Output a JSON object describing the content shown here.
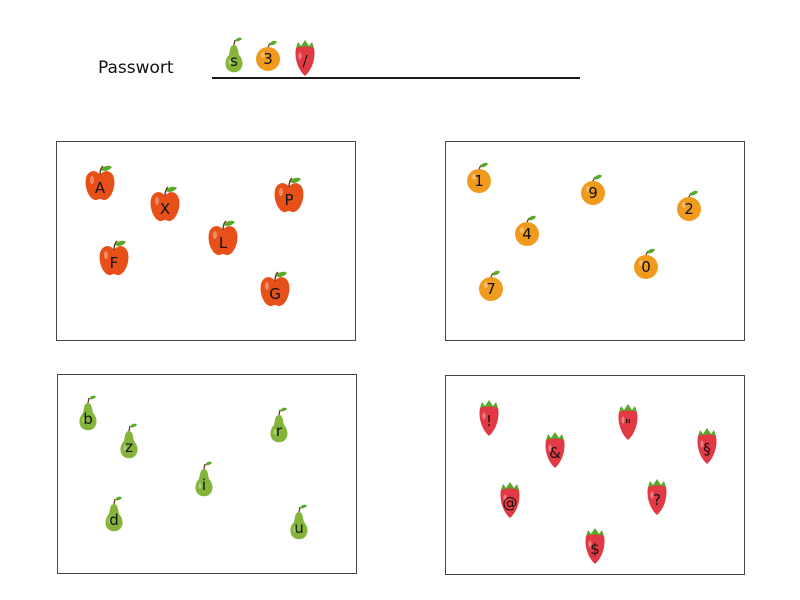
{
  "password": {
    "label": "Passwort",
    "entered": [
      {
        "type": "pear",
        "char": "s"
      },
      {
        "type": "orange",
        "char": "3"
      },
      {
        "type": "straw",
        "char": "/"
      }
    ]
  },
  "groups": [
    {
      "name": "apples",
      "fruit": "apple",
      "items": [
        {
          "char": "A"
        },
        {
          "char": "X"
        },
        {
          "char": "P"
        },
        {
          "char": "L"
        },
        {
          "char": "F"
        },
        {
          "char": "G"
        }
      ]
    },
    {
      "name": "oranges",
      "fruit": "orange",
      "items": [
        {
          "char": "1"
        },
        {
          "char": "9"
        },
        {
          "char": "2"
        },
        {
          "char": "4"
        },
        {
          "char": "0"
        },
        {
          "char": "7"
        }
      ]
    },
    {
      "name": "pears",
      "fruit": "pear",
      "items": [
        {
          "char": "b"
        },
        {
          "char": "z"
        },
        {
          "char": "r"
        },
        {
          "char": "i"
        },
        {
          "char": "d"
        },
        {
          "char": "u"
        }
      ]
    },
    {
      "name": "strawberries",
      "fruit": "straw",
      "items": [
        {
          "char": "!"
        },
        {
          "char": "\""
        },
        {
          "char": "&"
        },
        {
          "char": "§"
        },
        {
          "char": "@"
        },
        {
          "char": "?"
        },
        {
          "char": "$"
        }
      ]
    }
  ],
  "colors": {
    "apple": "#e8501a",
    "orange": "#f09a1e",
    "pear": "#84b53a",
    "strawberry": "#e23a44",
    "leaf": "#5aa82a"
  }
}
